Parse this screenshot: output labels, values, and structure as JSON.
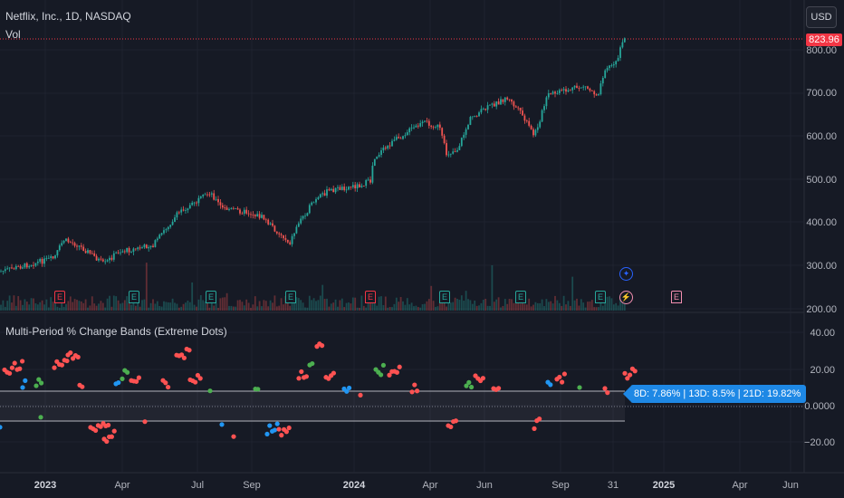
{
  "header": {
    "symbol_line": "Netflix, Inc., 1D, NASDAQ",
    "vol_label": "Vol",
    "indicator_title": "Multi-Period % Change Bands (Extreme Dots)",
    "currency_button": "USD"
  },
  "price_axis": {
    "last_price": "823.96",
    "ticks": [
      "800.00",
      "700.00",
      "600.00",
      "500.00",
      "400.00",
      "300.00",
      "200.00"
    ]
  },
  "indicator_axis": {
    "ticks": [
      "40.00",
      "20.00",
      "0.0000",
      "−20.00"
    ]
  },
  "time_axis": {
    "labels": [
      {
        "text": "2023",
        "bold": true
      },
      {
        "text": "Apr",
        "bold": false
      },
      {
        "text": "Jul",
        "bold": false
      },
      {
        "text": "Sep",
        "bold": false
      },
      {
        "text": "2024",
        "bold": true
      },
      {
        "text": "Apr",
        "bold": false
      },
      {
        "text": "Jun",
        "bold": false
      },
      {
        "text": "Sep",
        "bold": false
      },
      {
        "text": "31",
        "bold": false
      },
      {
        "text": "2025",
        "bold": true
      },
      {
        "text": "Apr",
        "bold": false
      },
      {
        "text": "Jun",
        "bold": false
      }
    ]
  },
  "events": [
    {
      "type": "earnings",
      "label": "E",
      "color": "#f23645"
    },
    {
      "type": "earnings",
      "label": "E",
      "color": "#26a69a"
    },
    {
      "type": "earnings",
      "label": "E",
      "color": "#26a69a"
    },
    {
      "type": "earnings",
      "label": "E",
      "color": "#26a69a"
    },
    {
      "type": "earnings",
      "label": "E",
      "color": "#f23645"
    },
    {
      "type": "earnings",
      "label": "E",
      "color": "#26a69a"
    },
    {
      "type": "earnings",
      "label": "E",
      "color": "#26a69a"
    },
    {
      "type": "earnings",
      "label": "E",
      "color": "#26a69a"
    },
    {
      "type": "earnings",
      "label": "E",
      "color": "#f48fb1"
    }
  ],
  "special_events": [
    {
      "icon": "star-icon",
      "glyph": "✦",
      "color": "#2962ff"
    },
    {
      "icon": "lightning-icon",
      "glyph": "⚡",
      "color": "#f48fb1"
    }
  ],
  "bands_label": "8D: 7.86% | 13D: 8.5% | 21D: 19.82%",
  "colors": {
    "up": "#26a69a",
    "down": "#ef5350",
    "dot_red": "#ff5252",
    "dot_green": "#4caf50",
    "dot_blue": "#2196f3",
    "accent": "#1e88e5",
    "last_price_line": "#f23645"
  }
}
